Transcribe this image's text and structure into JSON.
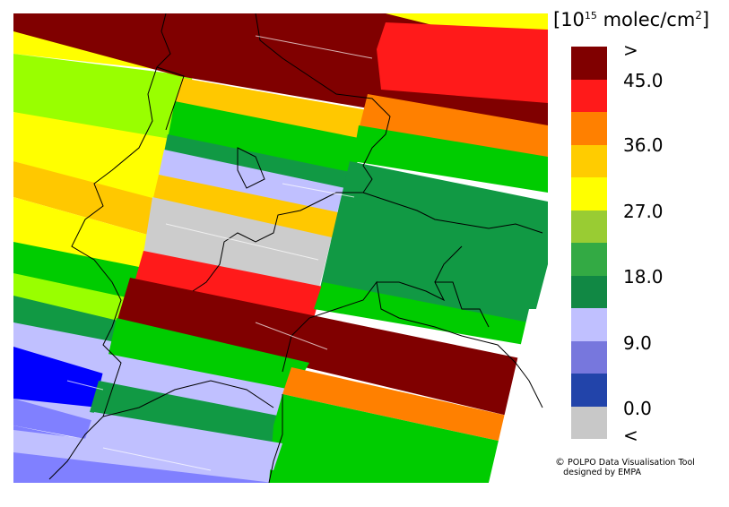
{
  "legend": {
    "unit_prefix": "[10",
    "unit_exp": "15",
    "unit_mid": " molec/cm",
    "unit_sq": "2",
    "unit_suffix": "]",
    "classes": [
      {
        "color": "#800000"
      },
      {
        "color": "#ff1a1a"
      },
      {
        "color": "#ff8000"
      },
      {
        "color": "#ffcc00"
      },
      {
        "color": "#ffff00"
      },
      {
        "color": "#99cc33"
      },
      {
        "color": "#33aa44"
      },
      {
        "color": "#118844"
      },
      {
        "color": "#c0c0ff"
      },
      {
        "color": "#7777dd"
      },
      {
        "color": "#2244aa"
      },
      {
        "color": "#c8c8c8"
      }
    ],
    "labels": [
      ">",
      "45.0",
      "36.0",
      "27.0",
      "18.0",
      "9.0",
      "0.0",
      "<"
    ]
  },
  "credit": {
    "symbol": "©",
    "line1": "POLPO Data Visualisation Tool",
    "line2": "designed by EMPA"
  },
  "colors": {
    "dark_red": "#800000",
    "red": "#ff0000",
    "orange": "#ff8000",
    "gold": "#ffc800",
    "yellow": "#ffff00",
    "lime": "#99ff00",
    "green": "#00cc00",
    "dark_green": "#119944",
    "lavender": "#c0c0ff",
    "periwinkle": "#8080ff",
    "blue": "#0000ff",
    "grey": "#cccccc"
  }
}
